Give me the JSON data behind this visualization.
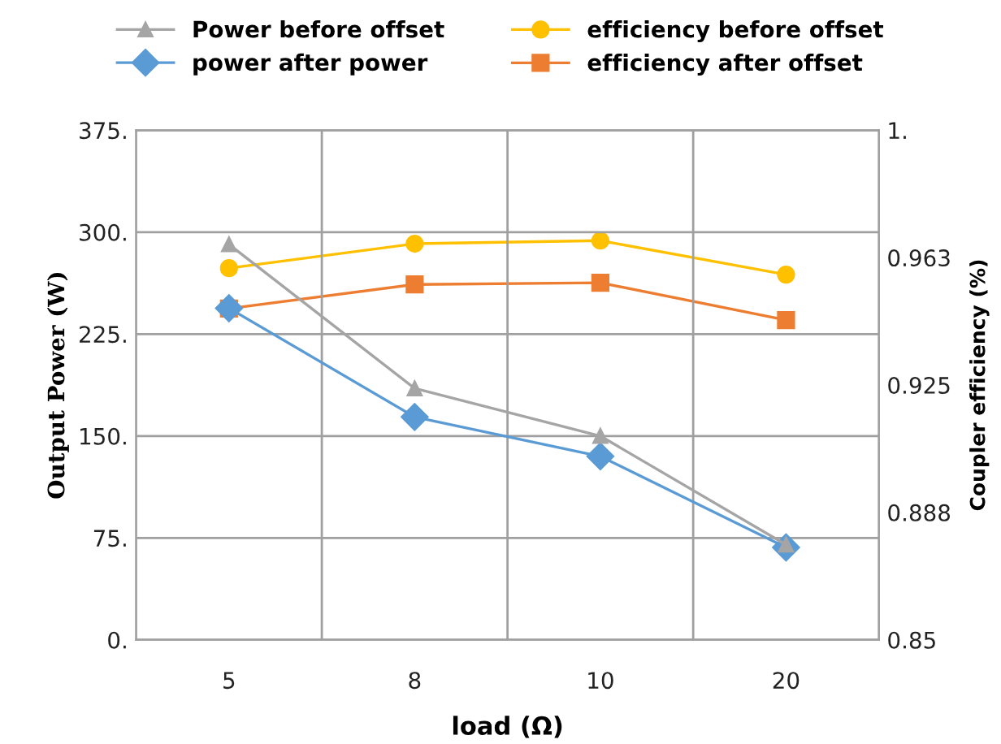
{
  "chart_data": {
    "type": "line",
    "xlabel": "load (Ω)",
    "ylabel": "Output Power (W)",
    "y2label": "Coupler efficiency (%)",
    "categories": [
      "5",
      "8",
      "10",
      "20"
    ],
    "series": [
      {
        "name": "Power before offset",
        "color": "#a5a5a5",
        "marker": "triangle",
        "values": [
          291,
          185,
          150,
          70
        ]
      },
      {
        "name": "power after power",
        "color": "#5b9bd5",
        "marker": "diamond",
        "values": [
          244,
          164,
          135,
          68
        ]
      },
      {
        "name": "efficiency before offset",
        "color": "#ffc000",
        "marker": "circle",
        "axis": "y2",
        "values": [
          0.9594,
          0.9666,
          0.9675,
          0.9575
        ]
      },
      {
        "name": "efficiency after offset",
        "color": "#ed7d31",
        "marker": "square",
        "axis": "y2",
        "values": [
          0.9475,
          0.9546,
          0.9551,
          0.9441
        ]
      }
    ],
    "ylim": [
      0,
      375
    ],
    "yticks": [
      {
        "value": 0,
        "label": "0."
      },
      {
        "value": 75,
        "label": "75."
      },
      {
        "value": 150,
        "label": "150."
      },
      {
        "value": 225,
        "label": "225."
      },
      {
        "value": 300,
        "label": "300."
      },
      {
        "value": 375,
        "label": "375."
      }
    ],
    "y2lim": [
      0.85,
      1
    ],
    "y2ticks": [
      0.85,
      {
        "value": 0.8875,
        "label": "0.888"
      },
      0.925,
      {
        "value": 0.9625,
        "label": "0.963"
      },
      {
        "value": 1,
        "label": "1."
      }
    ],
    "grid": true,
    "legend": "top"
  }
}
